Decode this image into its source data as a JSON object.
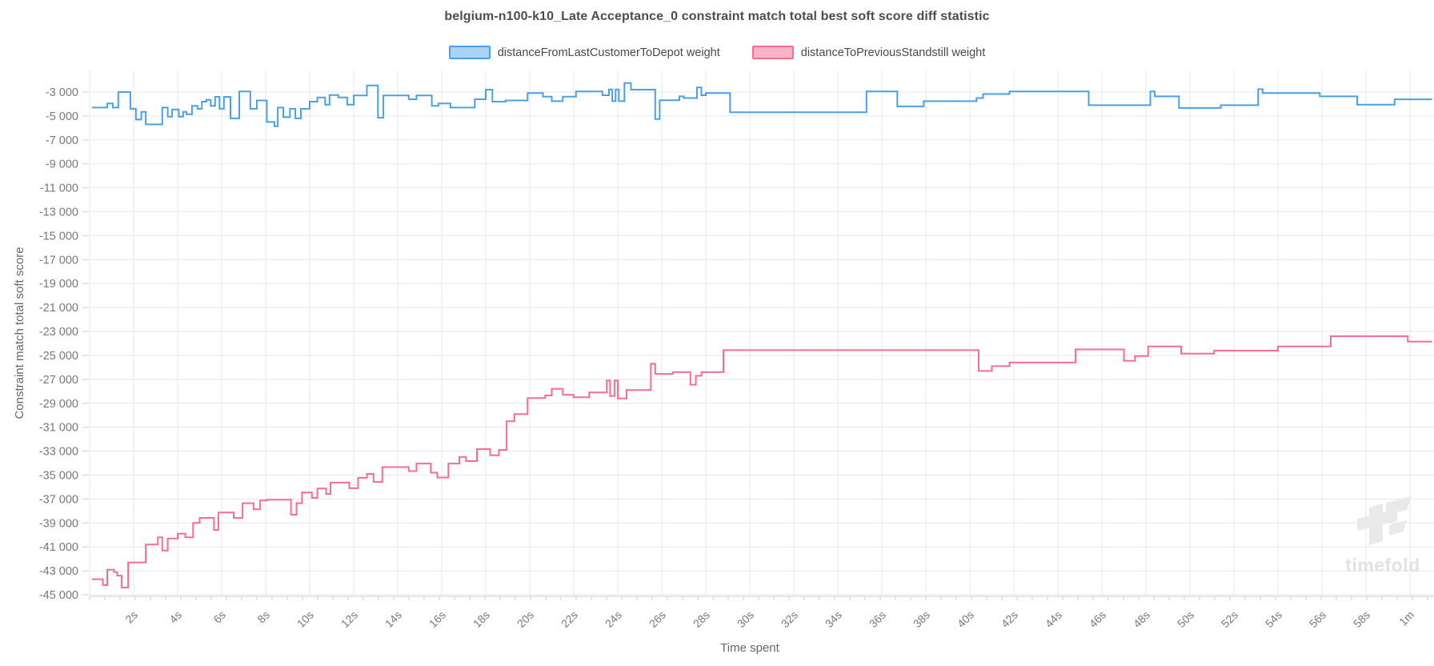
{
  "chart_data": {
    "type": "line",
    "step": true,
    "title": "belgium-n100-k10_Late Acceptance_0 constraint match total best soft score diff statistic",
    "xlabel": "Time spent",
    "ylabel": "Constraint match total soft score",
    "xlim_seconds": [
      0,
      61
    ],
    "ylim": [
      -45000,
      -3000
    ],
    "grid": true,
    "legend_position": "top",
    "background": "#ffffff",
    "grid_color": "#e7e7e7",
    "axis_color": "#cfcfcf",
    "tick_label_color": "#787878",
    "x_ticks": [
      {
        "t": 2,
        "label": "2s"
      },
      {
        "t": 4,
        "label": "4s"
      },
      {
        "t": 6,
        "label": "6s"
      },
      {
        "t": 8,
        "label": "8s"
      },
      {
        "t": 10,
        "label": "10s"
      },
      {
        "t": 12,
        "label": "12s"
      },
      {
        "t": 14,
        "label": "14s"
      },
      {
        "t": 16,
        "label": "16s"
      },
      {
        "t": 18,
        "label": "18s"
      },
      {
        "t": 20,
        "label": "20s"
      },
      {
        "t": 22,
        "label": "22s"
      },
      {
        "t": 24,
        "label": "24s"
      },
      {
        "t": 26,
        "label": "26s"
      },
      {
        "t": 28,
        "label": "28s"
      },
      {
        "t": 30,
        "label": "30s"
      },
      {
        "t": 32,
        "label": "32s"
      },
      {
        "t": 34,
        "label": "34s"
      },
      {
        "t": 36,
        "label": "36s"
      },
      {
        "t": 38,
        "label": "38s"
      },
      {
        "t": 40,
        "label": "40s"
      },
      {
        "t": 42,
        "label": "42s"
      },
      {
        "t": 44,
        "label": "44s"
      },
      {
        "t": 46,
        "label": "46s"
      },
      {
        "t": 48,
        "label": "48s"
      },
      {
        "t": 50,
        "label": "50s"
      },
      {
        "t": 52,
        "label": "52s"
      },
      {
        "t": 54,
        "label": "54s"
      },
      {
        "t": 56,
        "label": "56s"
      },
      {
        "t": 58,
        "label": "58s"
      },
      {
        "t": 60,
        "label": "1m"
      }
    ],
    "y_ticks": [
      {
        "v": -3000,
        "label": "-3 000"
      },
      {
        "v": -5000,
        "label": "-5 000"
      },
      {
        "v": -7000,
        "label": "-7 000"
      },
      {
        "v": -9000,
        "label": "-9 000"
      },
      {
        "v": -11000,
        "label": "-11 000"
      },
      {
        "v": -13000,
        "label": "-13 000"
      },
      {
        "v": -15000,
        "label": "-15 000"
      },
      {
        "v": -17000,
        "label": "-17 000"
      },
      {
        "v": -19000,
        "label": "-19 000"
      },
      {
        "v": -21000,
        "label": "-21 000"
      },
      {
        "v": -23000,
        "label": "-23 000"
      },
      {
        "v": -25000,
        "label": "-25 000"
      },
      {
        "v": -27000,
        "label": "-27 000"
      },
      {
        "v": -29000,
        "label": "-29 000"
      },
      {
        "v": -31000,
        "label": "-31 000"
      },
      {
        "v": -33000,
        "label": "-33 000"
      },
      {
        "v": -35000,
        "label": "-35 000"
      },
      {
        "v": -37000,
        "label": "-37 000"
      },
      {
        "v": -39000,
        "label": "-39 000"
      },
      {
        "v": -41000,
        "label": "-41 000"
      },
      {
        "v": -43000,
        "label": "-43 000"
      },
      {
        "v": -45000,
        "label": "-45 000"
      }
    ],
    "series": [
      {
        "name": "distanceFromLastCustomerToDepot weight",
        "line_color": "#4aa1e8",
        "fill_color": "#aad4f6",
        "points": [
          [
            0.1,
            -4300
          ],
          [
            0.8,
            -3950
          ],
          [
            1.05,
            -4300
          ],
          [
            1.3,
            -3000
          ],
          [
            1.85,
            -4400
          ],
          [
            2.1,
            -5300
          ],
          [
            2.35,
            -4650
          ],
          [
            2.55,
            -5700
          ],
          [
            3.3,
            -4300
          ],
          [
            3.55,
            -5050
          ],
          [
            3.75,
            -4450
          ],
          [
            4.05,
            -5050
          ],
          [
            4.25,
            -4650
          ],
          [
            4.4,
            -4850
          ],
          [
            4.65,
            -4150
          ],
          [
            4.9,
            -4400
          ],
          [
            5.1,
            -3800
          ],
          [
            5.3,
            -3650
          ],
          [
            5.5,
            -4150
          ],
          [
            5.7,
            -3400
          ],
          [
            5.9,
            -4400
          ],
          [
            6.1,
            -3400
          ],
          [
            6.4,
            -5200
          ],
          [
            6.8,
            -2950
          ],
          [
            7.3,
            -4400
          ],
          [
            7.6,
            -3700
          ],
          [
            8.05,
            -5500
          ],
          [
            8.4,
            -5850
          ],
          [
            8.55,
            -4300
          ],
          [
            8.8,
            -5100
          ],
          [
            9.1,
            -4400
          ],
          [
            9.35,
            -5200
          ],
          [
            9.6,
            -4400
          ],
          [
            10.0,
            -3800
          ],
          [
            10.35,
            -3450
          ],
          [
            10.7,
            -4050
          ],
          [
            10.9,
            -3250
          ],
          [
            11.3,
            -3450
          ],
          [
            11.7,
            -4050
          ],
          [
            12.0,
            -3280
          ],
          [
            12.6,
            -2450
          ],
          [
            13.1,
            -5150
          ],
          [
            13.35,
            -3280
          ],
          [
            14.5,
            -3600
          ],
          [
            14.85,
            -3280
          ],
          [
            15.55,
            -4150
          ],
          [
            15.85,
            -3950
          ],
          [
            16.4,
            -4300
          ],
          [
            17.5,
            -3600
          ],
          [
            18.0,
            -2800
          ],
          [
            18.3,
            -3800
          ],
          [
            18.9,
            -3700
          ],
          [
            19.9,
            -3090
          ],
          [
            20.6,
            -3390
          ],
          [
            21.0,
            -3760
          ],
          [
            21.5,
            -3390
          ],
          [
            22.1,
            -2950
          ],
          [
            23.3,
            -3270
          ],
          [
            23.6,
            -2780
          ],
          [
            23.75,
            -3760
          ],
          [
            23.9,
            -2780
          ],
          [
            24.05,
            -3760
          ],
          [
            24.3,
            -2250
          ],
          [
            24.6,
            -2800
          ],
          [
            25.7,
            -5260
          ],
          [
            25.9,
            -3680
          ],
          [
            26.8,
            -3360
          ],
          [
            27.0,
            -3500
          ],
          [
            27.6,
            -2620
          ],
          [
            27.8,
            -3270
          ],
          [
            28.0,
            -3090
          ],
          [
            29.1,
            -4690
          ],
          [
            35.3,
            -2950
          ],
          [
            36.7,
            -4200
          ],
          [
            37.9,
            -3760
          ],
          [
            40.3,
            -3500
          ],
          [
            40.6,
            -3170
          ],
          [
            41.8,
            -2950
          ],
          [
            45.4,
            -4100
          ],
          [
            48.2,
            -2950
          ],
          [
            48.4,
            -3360
          ],
          [
            49.5,
            -4330
          ],
          [
            51.4,
            -4100
          ],
          [
            53.1,
            -2760
          ],
          [
            53.3,
            -3090
          ],
          [
            55.9,
            -3360
          ],
          [
            57.6,
            -4060
          ],
          [
            59.3,
            -3610
          ],
          [
            61.0,
            -3610
          ]
        ]
      },
      {
        "name": "distanceToPreviousStandstill weight",
        "line_color": "#f86d90",
        "fill_color": "#fbb4c6",
        "points": [
          [
            0.1,
            -43700
          ],
          [
            0.6,
            -44200
          ],
          [
            0.8,
            -42900
          ],
          [
            1.1,
            -43100
          ],
          [
            1.25,
            -43400
          ],
          [
            1.45,
            -44400
          ],
          [
            1.75,
            -42300
          ],
          [
            2.55,
            -40800
          ],
          [
            3.1,
            -40200
          ],
          [
            3.3,
            -41300
          ],
          [
            3.55,
            -40300
          ],
          [
            4.0,
            -39900
          ],
          [
            4.35,
            -40200
          ],
          [
            4.7,
            -39000
          ],
          [
            5.0,
            -38580
          ],
          [
            5.65,
            -39580
          ],
          [
            5.85,
            -38130
          ],
          [
            6.55,
            -38580
          ],
          [
            6.95,
            -37350
          ],
          [
            7.45,
            -37860
          ],
          [
            7.75,
            -37130
          ],
          [
            8.05,
            -37060
          ],
          [
            9.15,
            -38310
          ],
          [
            9.4,
            -37350
          ],
          [
            9.65,
            -36450
          ],
          [
            10.1,
            -36900
          ],
          [
            10.35,
            -36120
          ],
          [
            10.75,
            -36570
          ],
          [
            10.95,
            -35630
          ],
          [
            11.8,
            -36100
          ],
          [
            12.2,
            -35230
          ],
          [
            12.6,
            -34900
          ],
          [
            12.9,
            -35570
          ],
          [
            13.3,
            -34330
          ],
          [
            14.5,
            -34670
          ],
          [
            14.85,
            -34040
          ],
          [
            15.5,
            -34800
          ],
          [
            15.8,
            -35200
          ],
          [
            16.3,
            -34040
          ],
          [
            16.8,
            -33490
          ],
          [
            17.1,
            -33830
          ],
          [
            17.6,
            -32830
          ],
          [
            18.2,
            -33340
          ],
          [
            18.6,
            -32900
          ],
          [
            18.95,
            -30500
          ],
          [
            19.3,
            -29900
          ],
          [
            19.9,
            -28570
          ],
          [
            20.7,
            -28350
          ],
          [
            21.0,
            -27800
          ],
          [
            21.5,
            -28300
          ],
          [
            22.0,
            -28500
          ],
          [
            22.7,
            -28100
          ],
          [
            23.5,
            -27100
          ],
          [
            23.65,
            -28400
          ],
          [
            23.85,
            -27100
          ],
          [
            24.0,
            -28600
          ],
          [
            24.4,
            -27900
          ],
          [
            25.5,
            -25700
          ],
          [
            25.7,
            -26550
          ],
          [
            26.5,
            -26400
          ],
          [
            27.3,
            -27450
          ],
          [
            27.55,
            -26700
          ],
          [
            27.8,
            -26400
          ],
          [
            28.8,
            -24560
          ],
          [
            40.4,
            -26300
          ],
          [
            41.0,
            -25900
          ],
          [
            41.8,
            -25600
          ],
          [
            44.8,
            -24500
          ],
          [
            47.0,
            -25450
          ],
          [
            47.5,
            -25050
          ],
          [
            48.1,
            -24250
          ],
          [
            49.6,
            -24850
          ],
          [
            51.1,
            -24600
          ],
          [
            54.0,
            -24250
          ],
          [
            56.4,
            -23400
          ],
          [
            59.9,
            -23850
          ],
          [
            61.0,
            -23850
          ]
        ]
      }
    ]
  },
  "watermark": {
    "text": "timefold"
  }
}
